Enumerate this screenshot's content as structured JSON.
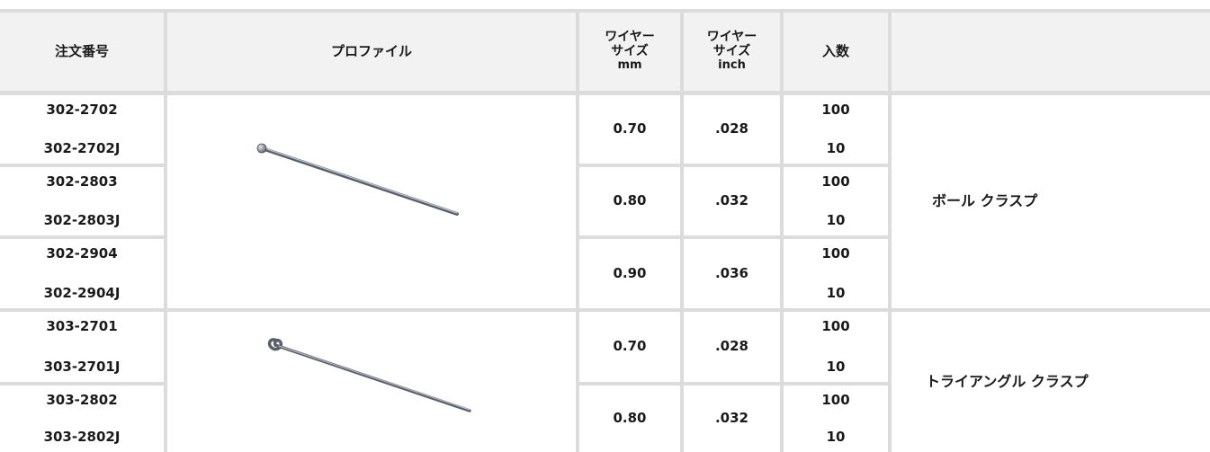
{
  "header": {
    "order_no": "注文番号",
    "profile": "プロファイル",
    "wire_mm": [
      "ワイヤー",
      "サイズ",
      "mm"
    ],
    "wire_inch": [
      "ワイヤー",
      "サイズ",
      "inch"
    ],
    "qty": "入数",
    "desc": ""
  },
  "rows": [
    {
      "codes": [
        "302-2702",
        "302-2702J"
      ],
      "mm": "0.70",
      "inch": ".028",
      "qty": [
        "100",
        "10"
      ]
    },
    {
      "codes": [
        "302-2803",
        "302-2803J"
      ],
      "mm": "0.80",
      "inch": ".032",
      "qty": [
        "100",
        "10"
      ]
    },
    {
      "codes": [
        "302-2904",
        "302-2904J"
      ],
      "mm": "0.90",
      "inch": ".036",
      "qty": [
        "100",
        "10"
      ]
    },
    {
      "codes": [
        "303-2701",
        "303-2701J"
      ],
      "mm": "0.70",
      "inch": ".028",
      "qty": [
        "100",
        "10"
      ]
    },
    {
      "codes": [
        "303-2802",
        "303-2802J"
      ],
      "mm": "0.80",
      "inch": ".032",
      "qty": [
        "100",
        "10"
      ]
    }
  ],
  "groups": [
    {
      "label": "ボール クラスプ",
      "image": "ball-clasp-wire"
    },
    {
      "label": "トライアングル クラスプ",
      "image": "triangle-clasp-wire"
    }
  ],
  "colors": {
    "header_bg": "#f2f2f2",
    "grid": "#dcdcdc"
  }
}
